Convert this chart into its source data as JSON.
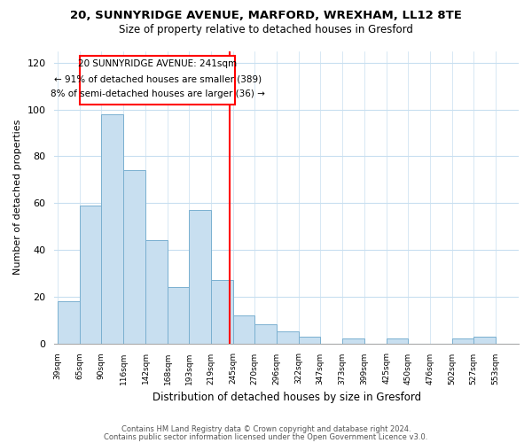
{
  "title1": "20, SUNNYRIDGE AVENUE, MARFORD, WREXHAM, LL12 8TE",
  "title2": "Size of property relative to detached houses in Gresford",
  "xlabel": "Distribution of detached houses by size in Gresford",
  "ylabel": "Number of detached properties",
  "bin_labels": [
    "39sqm",
    "65sqm",
    "90sqm",
    "116sqm",
    "142sqm",
    "168sqm",
    "193sqm",
    "219sqm",
    "245sqm",
    "270sqm",
    "296sqm",
    "322sqm",
    "347sqm",
    "373sqm",
    "399sqm",
    "425sqm",
    "450sqm",
    "476sqm",
    "502sqm",
    "527sqm",
    "553sqm"
  ],
  "bin_edges": [
    39,
    65,
    90,
    116,
    142,
    168,
    193,
    219,
    245,
    270,
    296,
    322,
    347,
    373,
    399,
    425,
    450,
    476,
    502,
    527,
    553
  ],
  "counts": [
    18,
    59,
    98,
    74,
    44,
    24,
    57,
    27,
    12,
    8,
    5,
    3,
    0,
    2,
    0,
    2,
    0,
    0,
    2,
    3,
    0
  ],
  "property_value": 241,
  "annotation_line1": "20 SUNNYRIDGE AVENUE: 241sqm",
  "annotation_line2": "← 91% of detached houses are smaller (389)",
  "annotation_line3": "8% of semi-detached houses are larger (36) →",
  "bar_color": "#c8dff0",
  "bar_edge_color": "#7ab0d0",
  "vline_color": "red",
  "box_edge_color": "red",
  "ylim": [
    0,
    125
  ],
  "yticks": [
    0,
    20,
    40,
    60,
    80,
    100,
    120
  ],
  "grid_color": "#c8dff0",
  "footer1": "Contains HM Land Registry data © Crown copyright and database right 2024.",
  "footer2": "Contains public sector information licensed under the Open Government Licence v3.0."
}
